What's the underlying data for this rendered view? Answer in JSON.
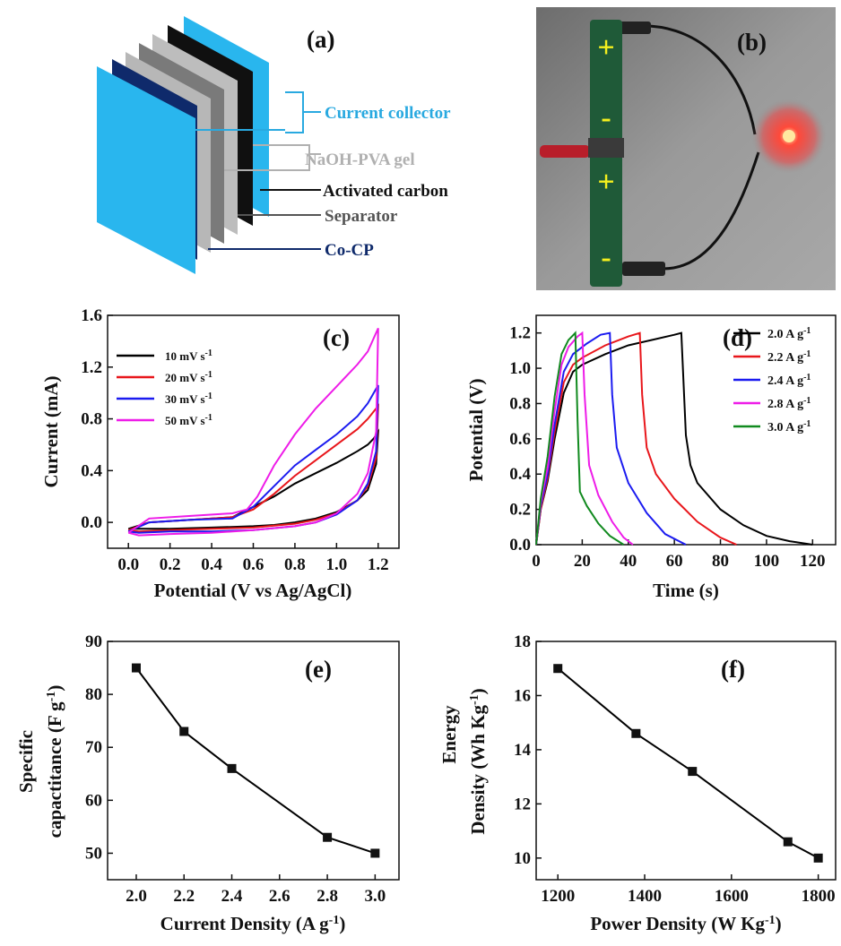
{
  "panel_labels": {
    "a": "(a)",
    "b": "(b)",
    "c": "(c)",
    "d": "(d)",
    "e": "(e)",
    "f": "(f)"
  },
  "cell": {
    "labels": [
      {
        "text": "Current collector",
        "color": "#29a9e0"
      },
      {
        "text": "NaOH-PVA gel",
        "color": "#b0b0b0"
      },
      {
        "text": "Activated carbon",
        "color": "#111111"
      },
      {
        "text": "Separator",
        "color": "#555555"
      },
      {
        "text": "Co-CP",
        "color": "#0f2a6b"
      }
    ],
    "layer_colors": [
      "#29b6ee",
      "#0f2a6b",
      "#b7b7b7",
      "#7a7a7a",
      "#bdbdbd",
      "#101010",
      "#29b6ee"
    ]
  },
  "photo": {
    "signs": [
      "+",
      "-",
      "+",
      "-"
    ],
    "led_color": "#ff3030",
    "device_color": "#1f5a38",
    "background": "#8e8e8e"
  },
  "chart_data": [
    {
      "panel": "c",
      "type": "line",
      "xlabel": "Potential (V vs Ag/AgCl)",
      "ylabel": "Current (mA)",
      "xlim": [
        -0.1,
        1.3
      ],
      "ylim": [
        -0.2,
        1.6
      ],
      "xticks": [
        "0.0",
        "0.2",
        "0.4",
        "0.6",
        "0.8",
        "1.0",
        "1.2"
      ],
      "yticks": [
        "0.0",
        "0.4",
        "0.8",
        "1.2",
        "1.6"
      ],
      "series": [
        {
          "name": "10 mV s",
          "color": "#000000",
          "x": [
            0.0,
            0.1,
            0.3,
            0.5,
            0.6,
            0.7,
            0.8,
            0.9,
            1.0,
            1.1,
            1.15,
            1.18,
            1.2,
            1.19,
            1.15,
            1.1,
            1.0,
            0.9,
            0.8,
            0.7,
            0.6,
            0.4,
            0.2,
            0.05,
            0.0
          ],
          "y": [
            -0.05,
            0.0,
            0.02,
            0.04,
            0.12,
            0.2,
            0.3,
            0.38,
            0.46,
            0.55,
            0.6,
            0.65,
            0.7,
            0.45,
            0.25,
            0.17,
            0.08,
            0.03,
            0.0,
            -0.02,
            -0.03,
            -0.04,
            -0.05,
            -0.05,
            -0.05
          ]
        },
        {
          "name": "20 mV s",
          "color": "#e8161b",
          "x": [
            0.0,
            0.1,
            0.3,
            0.5,
            0.6,
            0.7,
            0.8,
            0.9,
            1.0,
            1.1,
            1.15,
            1.2,
            1.19,
            1.15,
            1.1,
            1.0,
            0.9,
            0.8,
            0.6,
            0.4,
            0.2,
            0.05,
            0.0
          ],
          "y": [
            -0.06,
            0.0,
            0.02,
            0.04,
            0.1,
            0.22,
            0.36,
            0.48,
            0.6,
            0.72,
            0.8,
            0.9,
            0.5,
            0.28,
            0.17,
            0.07,
            0.02,
            -0.01,
            -0.04,
            -0.05,
            -0.06,
            -0.07,
            -0.06
          ]
        },
        {
          "name": "30 mV s",
          "color": "#1b1bf0",
          "x": [
            0.0,
            0.1,
            0.3,
            0.5,
            0.6,
            0.7,
            0.8,
            0.9,
            1.0,
            1.1,
            1.15,
            1.2,
            1.19,
            1.15,
            1.1,
            1.0,
            0.9,
            0.8,
            0.6,
            0.4,
            0.2,
            0.05,
            0.0
          ],
          "y": [
            -0.07,
            0.0,
            0.02,
            0.03,
            0.12,
            0.28,
            0.44,
            0.56,
            0.68,
            0.82,
            0.92,
            1.06,
            0.55,
            0.3,
            0.17,
            0.06,
            0.0,
            -0.03,
            -0.06,
            -0.07,
            -0.07,
            -0.08,
            -0.07
          ]
        },
        {
          "name": "50 mV s",
          "color": "#ee1ce8",
          "x": [
            0.0,
            0.1,
            0.3,
            0.5,
            0.57,
            0.62,
            0.7,
            0.8,
            0.9,
            1.0,
            1.1,
            1.15,
            1.2,
            1.19,
            1.15,
            1.1,
            1.0,
            0.9,
            0.8,
            0.6,
            0.4,
            0.2,
            0.05,
            0.0
          ],
          "y": [
            -0.08,
            0.03,
            0.05,
            0.07,
            0.1,
            0.2,
            0.44,
            0.68,
            0.88,
            1.05,
            1.22,
            1.32,
            1.5,
            0.7,
            0.38,
            0.22,
            0.07,
            0.0,
            -0.03,
            -0.06,
            -0.08,
            -0.09,
            -0.1,
            -0.08
          ]
        }
      ]
    },
    {
      "panel": "d",
      "type": "line",
      "xlabel": "Time (s)",
      "ylabel": "Potential (V)",
      "xlim": [
        0,
        130
      ],
      "ylim": [
        0,
        1.3
      ],
      "xticks": [
        "0",
        "20",
        "40",
        "60",
        "80",
        "100",
        "120"
      ],
      "yticks": [
        "0.0",
        "0.2",
        "0.4",
        "0.6",
        "0.8",
        "1.0",
        "1.2"
      ],
      "series": [
        {
          "name": "2.0 A g",
          "color": "#000000",
          "x": [
            0,
            2,
            5,
            8,
            12,
            16,
            20,
            30,
            40,
            50,
            60,
            63,
            65,
            67,
            70,
            80,
            90,
            100,
            110,
            120
          ],
          "y": [
            0,
            0.2,
            0.36,
            0.6,
            0.86,
            0.98,
            1.02,
            1.08,
            1.13,
            1.16,
            1.19,
            1.2,
            0.62,
            0.45,
            0.35,
            0.2,
            0.11,
            0.05,
            0.02,
            0.0
          ]
        },
        {
          "name": "2.2 A g",
          "color": "#e8161b",
          "x": [
            0,
            2,
            5,
            8,
            12,
            16,
            20,
            30,
            40,
            45,
            46,
            48,
            52,
            60,
            70,
            80,
            87
          ],
          "y": [
            0,
            0.2,
            0.38,
            0.64,
            0.92,
            1.02,
            1.06,
            1.13,
            1.18,
            1.2,
            0.85,
            0.55,
            0.4,
            0.26,
            0.13,
            0.04,
            0.0
          ]
        },
        {
          "name": "2.4 A g",
          "color": "#1b1bf0",
          "x": [
            0,
            2,
            5,
            8,
            12,
            16,
            22,
            28,
            32,
            33,
            35,
            40,
            48,
            56,
            65
          ],
          "y": [
            0,
            0.22,
            0.4,
            0.68,
            0.98,
            1.08,
            1.14,
            1.19,
            1.2,
            0.85,
            0.55,
            0.35,
            0.18,
            0.06,
            0.0
          ]
        },
        {
          "name": "2.8 A g",
          "color": "#ee1ce8",
          "x": [
            0,
            2,
            5,
            8,
            11,
            14,
            18,
            20,
            21,
            23,
            27,
            33,
            38,
            42
          ],
          "y": [
            0,
            0.24,
            0.44,
            0.76,
            1.02,
            1.12,
            1.18,
            1.2,
            0.85,
            0.45,
            0.28,
            0.13,
            0.04,
            0.0
          ]
        },
        {
          "name": "3.0 A g",
          "color": "#118a1f",
          "x": [
            0,
            2,
            5,
            8,
            11,
            14,
            17,
            18,
            19,
            22,
            27,
            32,
            38
          ],
          "y": [
            0,
            0.26,
            0.5,
            0.84,
            1.08,
            1.16,
            1.2,
            0.7,
            0.3,
            0.22,
            0.12,
            0.05,
            0.0
          ]
        }
      ]
    },
    {
      "panel": "e",
      "type": "line",
      "xlabel": "Current Density (A g",
      "ylabel": [
        "Specific",
        "capactitance (F g"
      ],
      "xlim": [
        1.88,
        3.1
      ],
      "ylim": [
        45,
        90
      ],
      "xticks": [
        "2.0",
        "2.2",
        "2.4",
        "2.6",
        "2.8",
        "3.0"
      ],
      "yticks": [
        "50",
        "60",
        "70",
        "80",
        "90"
      ],
      "series": [
        {
          "name": "",
          "color": "#000000",
          "x": [
            2.0,
            2.2,
            2.4,
            2.8,
            3.0
          ],
          "y": [
            85,
            73,
            66,
            53,
            50
          ]
        }
      ]
    },
    {
      "panel": "f",
      "type": "line",
      "xlabel": "Power Density (W Kg",
      "ylabel": [
        "Energy",
        "Density (Wh Kg"
      ],
      "xlim": [
        1150,
        1840
      ],
      "ylim": [
        9.2,
        18
      ],
      "xticks": [
        "1200",
        "1400",
        "1600",
        "1800"
      ],
      "yticks": [
        "10",
        "12",
        "14",
        "16",
        "18"
      ],
      "series": [
        {
          "name": "",
          "color": "#000000",
          "x": [
            1200,
            1380,
            1510,
            1730,
            1800
          ],
          "y": [
            17.0,
            14.6,
            13.2,
            10.6,
            10.0
          ]
        }
      ]
    }
  ]
}
